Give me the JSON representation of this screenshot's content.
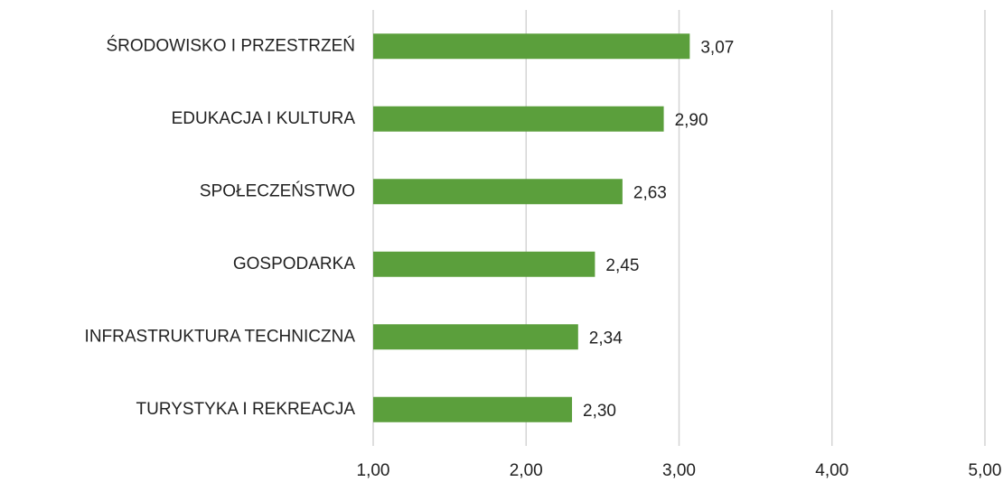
{
  "chart_data": {
    "type": "hbar",
    "categories": [
      "ŚRODOWISKO I PRZESTRZEŃ",
      "EDUKACJA I KULTURA",
      "SPOŁECZEŃSTWO",
      "GOSPODARKA",
      "INFRASTRUKTURA TECHNICZNA",
      "TURYSTYKA I REKREACJA"
    ],
    "values": [
      3.07,
      2.9,
      2.63,
      2.45,
      2.34,
      2.3
    ],
    "value_labels": [
      "3,07",
      "2,90",
      "2,63",
      "2,45",
      "2,34",
      "2,30"
    ],
    "color": "#5b9f3c",
    "xlim": [
      1,
      5
    ],
    "xticks": [
      {
        "value": 1,
        "label": "1,00"
      },
      {
        "value": 2,
        "label": "2,00"
      },
      {
        "value": 3,
        "label": "3,00"
      },
      {
        "value": 4,
        "label": "4,00"
      },
      {
        "value": 5,
        "label": "5,00"
      }
    ],
    "grid": true
  }
}
